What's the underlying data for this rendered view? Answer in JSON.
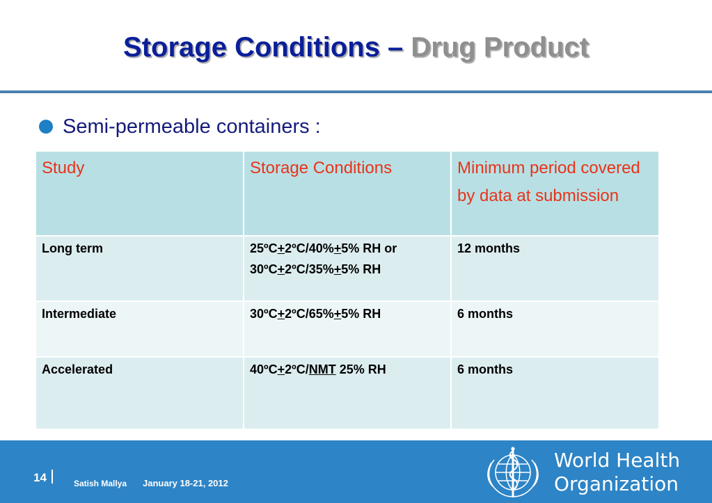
{
  "slide": {
    "title_main": "Storage Conditions – ",
    "title_accent": "Drug Product",
    "bullet": "Semi-permeable containers :"
  },
  "table": {
    "headers": [
      "Study",
      "Storage Conditions",
      "Minimum period covered by data at submission"
    ],
    "rows": [
      {
        "study": "Long term",
        "conditions": [
          [
            "25ºC",
            "+",
            "2ºC/40%",
            "+",
            "5% RH or"
          ],
          [
            "30ºC",
            "+",
            "2ºC/35%",
            "+",
            "5% RH"
          ]
        ],
        "period": "12 months"
      },
      {
        "study": "Intermediate",
        "conditions": [
          [
            "30ºC",
            "+",
            "2ºC/65%",
            "+",
            "5% RH"
          ]
        ],
        "period": "6 months"
      },
      {
        "study": "Accelerated",
        "conditions": [
          [
            "40ºC",
            "+",
            "2ºC/",
            "NMT",
            " 25% RH"
          ]
        ],
        "period": "6 months"
      }
    ]
  },
  "footer": {
    "page_number": "14",
    "author": "Satish Mallya",
    "date": "January 18-21, 2012",
    "org_line1": "World Health",
    "org_line2": "Organization",
    "logo_icon": "who-emblem-icon"
  },
  "colors": {
    "title_blue": "#0a1f99",
    "title_gray": "#8f8f8f",
    "header_text": "#e8331a",
    "header_bg": "#b8e0e4",
    "footer_bg": "#2d84c6"
  }
}
